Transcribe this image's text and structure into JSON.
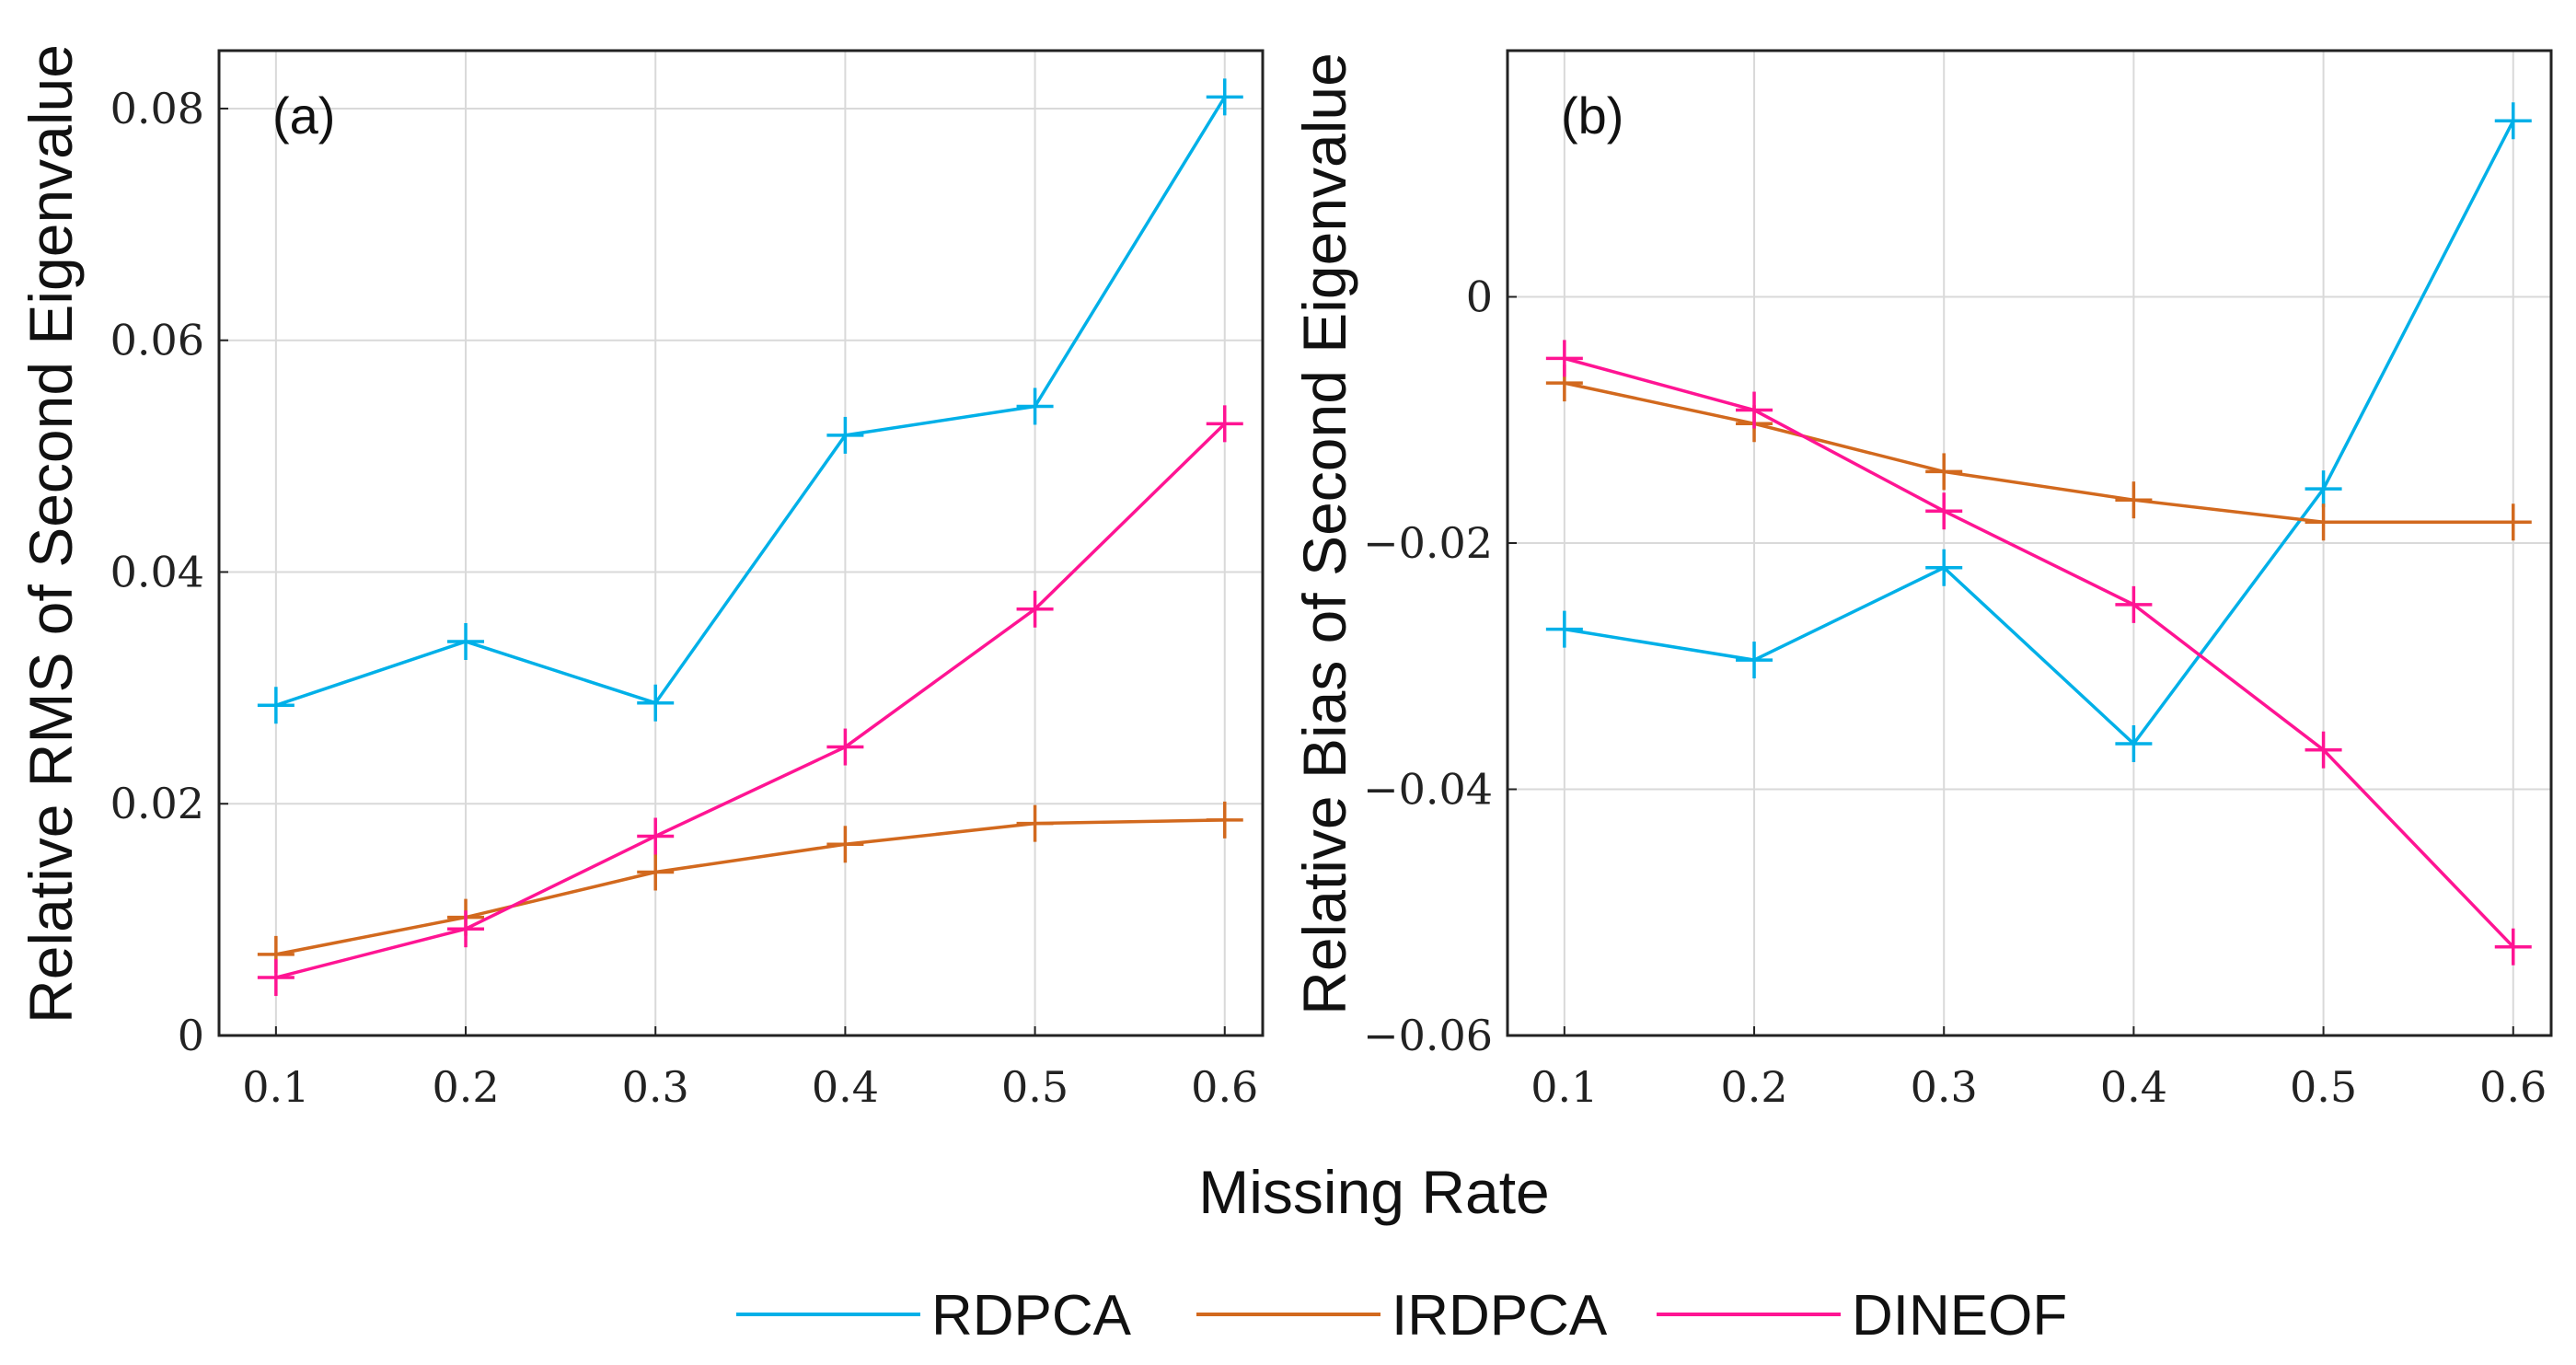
{
  "shared": {
    "xlabel": "Missing Rate",
    "legend": {
      "entries": [
        {
          "name": "RDPCA",
          "color": "#00B0E8"
        },
        {
          "name": "IRDPCA",
          "color": "#D2691E"
        },
        {
          "name": "DINEOF",
          "color": "#FF1493"
        }
      ],
      "placement": "bottom-center"
    }
  },
  "chart_data": [
    {
      "type": "line",
      "panel_label": "(a)",
      "ylabel": "Relative RMS of Second Eigenvalue",
      "xlabel": "Missing Rate",
      "x": [
        0.1,
        0.2,
        0.3,
        0.4,
        0.5,
        0.6
      ],
      "x_tick_labels": [
        "0.1",
        "0.2",
        "0.3",
        "0.4",
        "0.5",
        "0.6"
      ],
      "xlim": [
        0.07,
        0.62
      ],
      "ylim": [
        0,
        0.085
      ],
      "y_ticks": [
        0,
        0.02,
        0.04,
        0.06,
        0.08
      ],
      "y_tick_labels": [
        "0",
        "0.02",
        "0.04",
        "0.06",
        "0.08"
      ],
      "grid": true,
      "series": [
        {
          "name": "RDPCA",
          "color": "#00B0E8",
          "values": [
            0.0285,
            0.034,
            0.0287,
            0.0518,
            0.0543,
            0.081
          ]
        },
        {
          "name": "IRDPCA",
          "color": "#D2691E",
          "values": [
            0.007,
            0.0102,
            0.0141,
            0.0165,
            0.0183,
            0.0186
          ]
        },
        {
          "name": "DINEOF",
          "color": "#FF1493",
          "values": [
            0.005,
            0.0092,
            0.0172,
            0.0249,
            0.0368,
            0.0528
          ]
        }
      ]
    },
    {
      "type": "line",
      "panel_label": "(b)",
      "ylabel": "Relative Bias of Second Eigenvalue",
      "xlabel": "Missing Rate",
      "x": [
        0.1,
        0.2,
        0.3,
        0.4,
        0.5,
        0.6
      ],
      "x_tick_labels": [
        "0.1",
        "0.2",
        "0.3",
        "0.4",
        "0.5",
        "0.6"
      ],
      "xlim": [
        0.07,
        0.62
      ],
      "ylim": [
        -0.06,
        0.02
      ],
      "y_ticks": [
        -0.06,
        -0.04,
        -0.02,
        0
      ],
      "y_tick_labels": [
        "−0.06",
        "−0.04",
        "−0.02",
        "0"
      ],
      "grid": true,
      "series": [
        {
          "name": "RDPCA",
          "color": "#00B0E8",
          "values": [
            -0.027,
            -0.0295,
            -0.022,
            -0.0363,
            -0.0156,
            0.0143
          ]
        },
        {
          "name": "IRDPCA",
          "color": "#D2691E",
          "values": [
            -0.007,
            -0.0103,
            -0.0142,
            -0.0165,
            -0.0183,
            -0.0183
          ]
        },
        {
          "name": "DINEOF",
          "color": "#FF1493",
          "values": [
            -0.005,
            -0.0092,
            -0.0174,
            -0.025,
            -0.0368,
            -0.0528
          ]
        }
      ]
    }
  ]
}
